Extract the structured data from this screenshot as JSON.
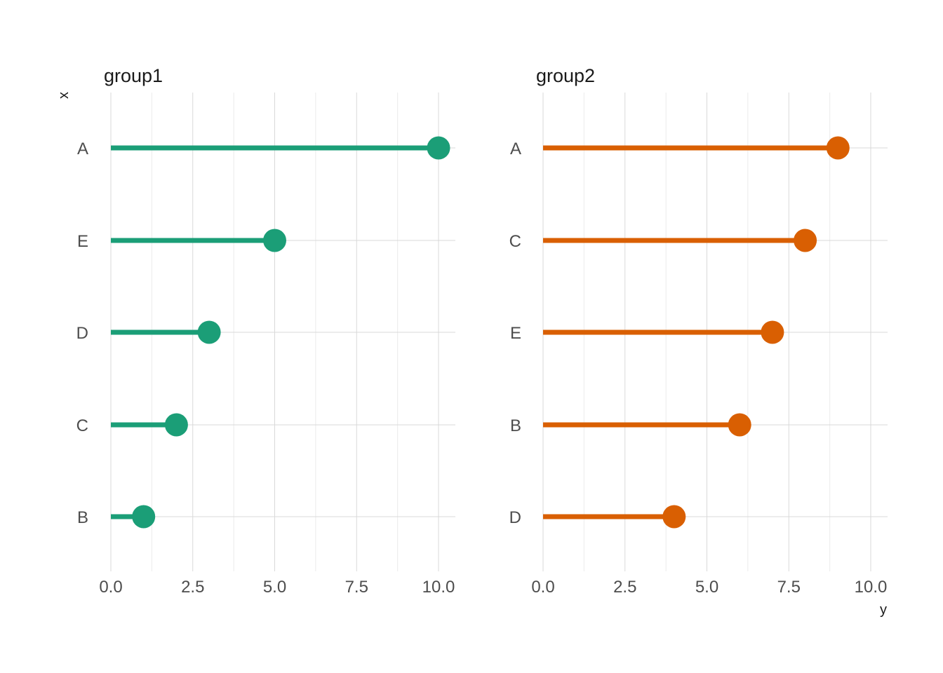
{
  "chart_data": {
    "type": "lollipop",
    "x_axis_label": "y",
    "y_axis_label": "x",
    "xlim": [
      0,
      10
    ],
    "x_ticks": [
      "0.0",
      "2.5",
      "5.0",
      "7.5",
      "10.0"
    ],
    "panels": [
      {
        "name": "group1",
        "color": "#1b9e77",
        "categories": [
          "A",
          "E",
          "D",
          "C",
          "B"
        ],
        "values": [
          10,
          5,
          3,
          2,
          1
        ]
      },
      {
        "name": "group2",
        "color": "#d95f02",
        "categories": [
          "A",
          "C",
          "E",
          "B",
          "D"
        ],
        "values": [
          9,
          8,
          7,
          6,
          4
        ]
      }
    ],
    "grid": true,
    "legend": "none"
  }
}
